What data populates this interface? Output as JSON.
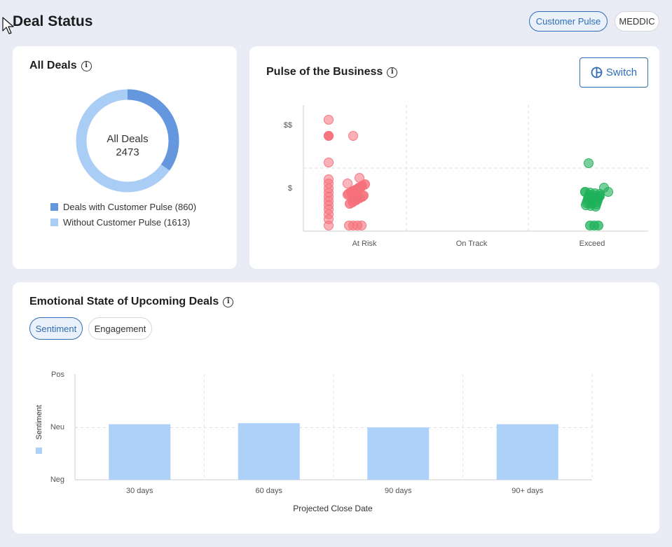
{
  "page": {
    "title": "Deal Status"
  },
  "view_toggle": {
    "customer_pulse": "Customer Pulse",
    "meddic": "MEDDIC",
    "active": "customer_pulse"
  },
  "all_deals": {
    "title": "All Deals",
    "center_label": "All Deals",
    "center_value": "2473",
    "legend": [
      {
        "label": "Deals with Customer Pulse (860)",
        "color": "#6497dd"
      },
      {
        "label": "Without Customer Pulse (1613)",
        "color": "#aacdf6"
      }
    ]
  },
  "pulse": {
    "title": "Pulse of the Business",
    "switch_label": "Switch",
    "y_ticks": [
      "$$",
      "$"
    ],
    "x_categories": [
      "At Risk",
      "On Track",
      "Exceed"
    ],
    "colors": {
      "at_risk": "#f5707a",
      "exceed": "#1fb15a"
    }
  },
  "emotional": {
    "title": "Emotional State of Upcoming Deals",
    "tabs": [
      "Sentiment",
      "Engagement"
    ],
    "active_tab": "Sentiment"
  },
  "chart_data": {
    "type": "bar",
    "categories": [
      "30 days",
      "60 days",
      "90 days",
      "90+ days"
    ],
    "values": [
      0.05,
      0.07,
      -0.01,
      0.05
    ],
    "y_ticks": [
      "Pos",
      "Neu",
      "Neg"
    ],
    "ylim": [
      -1,
      1
    ],
    "xlabel": "Projected Close Date",
    "ylabel": "Sentiment",
    "bar_color": "#aed1fa",
    "grid": true
  }
}
